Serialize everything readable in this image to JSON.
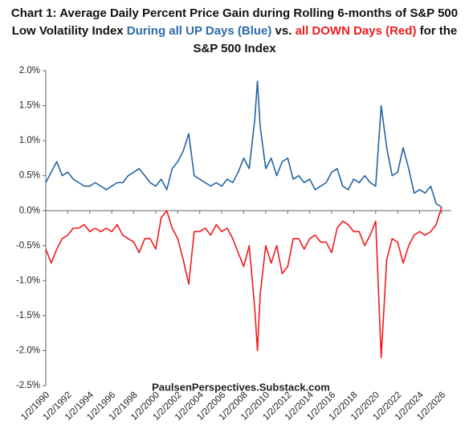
{
  "chart_data": {
    "type": "line",
    "title_segments": [
      {
        "text": "Chart 1: Average Daily Percent Price Gain during Rolling 6-months of S&P 500 Low Volatility Index ",
        "color": "#111111"
      },
      {
        "text": "During all UP Days (Blue)",
        "color": "#2e6aa8"
      },
      {
        "text": " vs. ",
        "color": "#111111"
      },
      {
        "text": "all DOWN Days (Red)",
        "color": "#ee1c1c"
      },
      {
        "text": " for the S&P 500 Index",
        "color": "#111111"
      }
    ],
    "annotation": "PaulsenPerspectives.Substack.com",
    "x": [
      "1/2/1990",
      "7/2/1990",
      "1/2/1991",
      "7/2/1991",
      "1/2/1992",
      "7/2/1992",
      "1/2/1993",
      "7/2/1993",
      "1/2/1994",
      "7/2/1994",
      "1/2/1995",
      "7/2/1995",
      "1/2/1996",
      "7/2/1996",
      "1/2/1997",
      "7/2/1997",
      "1/2/1998",
      "7/2/1998",
      "1/2/1999",
      "7/2/1999",
      "1/2/2000",
      "7/2/2000",
      "1/2/2001",
      "7/2/2001",
      "1/2/2002",
      "7/2/2002",
      "1/2/2003",
      "7/2/2003",
      "1/2/2004",
      "7/2/2004",
      "1/2/2005",
      "7/2/2005",
      "1/2/2006",
      "7/2/2006",
      "1/2/2007",
      "7/2/2007",
      "1/2/2008",
      "7/2/2008",
      "1/2/2009",
      "4/2/2009",
      "7/2/2009",
      "1/2/2010",
      "7/2/2010",
      "1/2/2011",
      "7/2/2011",
      "1/2/2012",
      "7/2/2012",
      "1/2/2013",
      "7/2/2013",
      "1/2/2014",
      "7/2/2014",
      "1/2/2015",
      "7/2/2015",
      "1/2/2016",
      "7/2/2016",
      "1/2/2017",
      "7/2/2017",
      "1/2/2018",
      "7/2/2018",
      "1/2/2019",
      "7/2/2019",
      "1/2/2020",
      "7/2/2020",
      "1/2/2021",
      "7/2/2021",
      "1/2/2022",
      "7/2/2022",
      "1/2/2023",
      "7/2/2023",
      "1/2/2024",
      "7/2/2024",
      "1/2/2025",
      "7/2/2025",
      "1/2/2026"
    ],
    "series": [
      {
        "name": "UP Days",
        "color": "#2464a0",
        "values": [
          0.4,
          0.55,
          0.7,
          0.5,
          0.55,
          0.45,
          0.4,
          0.35,
          0.35,
          0.4,
          0.35,
          0.3,
          0.35,
          0.4,
          0.4,
          0.5,
          0.55,
          0.6,
          0.5,
          0.4,
          0.35,
          0.45,
          0.3,
          0.6,
          0.7,
          0.85,
          1.1,
          0.5,
          0.45,
          0.4,
          0.35,
          0.4,
          0.35,
          0.45,
          0.4,
          0.55,
          0.75,
          0.6,
          1.3,
          1.85,
          1.2,
          0.6,
          0.75,
          0.5,
          0.7,
          0.75,
          0.45,
          0.5,
          0.4,
          0.45,
          0.3,
          0.35,
          0.4,
          0.55,
          0.6,
          0.35,
          0.3,
          0.45,
          0.4,
          0.5,
          0.4,
          0.35,
          1.5,
          0.9,
          0.5,
          0.55,
          0.9,
          0.6,
          0.25,
          0.3,
          0.25,
          0.35,
          0.1,
          0.05
        ]
      },
      {
        "name": "DOWN Days",
        "color": "#ee1c1c",
        "values": [
          -0.55,
          -0.75,
          -0.55,
          -0.4,
          -0.35,
          -0.25,
          -0.25,
          -0.2,
          -0.3,
          -0.25,
          -0.3,
          -0.25,
          -0.3,
          -0.2,
          -0.35,
          -0.4,
          -0.45,
          -0.6,
          -0.4,
          -0.4,
          -0.55,
          -0.1,
          0.0,
          -0.25,
          -0.4,
          -0.7,
          -1.05,
          -0.3,
          -0.3,
          -0.25,
          -0.35,
          -0.2,
          -0.3,
          -0.25,
          -0.4,
          -0.6,
          -0.8,
          -0.5,
          -1.4,
          -2.0,
          -1.2,
          -0.5,
          -0.75,
          -0.5,
          -0.9,
          -0.8,
          -0.4,
          -0.4,
          -0.55,
          -0.4,
          -0.35,
          -0.45,
          -0.45,
          -0.6,
          -0.25,
          -0.15,
          -0.2,
          -0.3,
          -0.3,
          -0.5,
          -0.35,
          -0.15,
          -2.1,
          -0.7,
          -0.4,
          -0.45,
          -0.75,
          -0.5,
          -0.35,
          -0.3,
          -0.35,
          -0.3,
          -0.2,
          0.05
        ]
      }
    ],
    "xlim": [
      "1/2/1990",
      "1/2/2026"
    ],
    "xticks": [
      "1/2/1990",
      "1/2/1992",
      "1/2/1994",
      "1/2/1996",
      "1/2/1998",
      "1/2/2000",
      "1/2/2002",
      "1/2/2004",
      "1/2/2006",
      "1/2/2008",
      "1/2/2010",
      "1/2/2012",
      "1/2/2014",
      "1/2/2016",
      "1/2/2018",
      "1/2/2020",
      "1/2/2022",
      "1/2/2024",
      "1/2/2026"
    ],
    "ylim": [
      -2.5,
      2.0
    ],
    "yticks": [
      {
        "value": 2.0,
        "label": "2.0%"
      },
      {
        "value": 1.5,
        "label": "1.5%"
      },
      {
        "value": 1.0,
        "label": "1.0%"
      },
      {
        "value": 0.5,
        "label": "0.5%"
      },
      {
        "value": 0.0,
        "label": "0.0%"
      },
      {
        "value": -0.5,
        "label": "-0.5%"
      },
      {
        "value": -1.0,
        "label": "-1.0%"
      },
      {
        "value": -1.5,
        "label": "-1.5%"
      },
      {
        "value": -2.0,
        "label": "-2.0%"
      },
      {
        "value": -2.5,
        "label": "-2.5%"
      }
    ],
    "grid": false
  }
}
